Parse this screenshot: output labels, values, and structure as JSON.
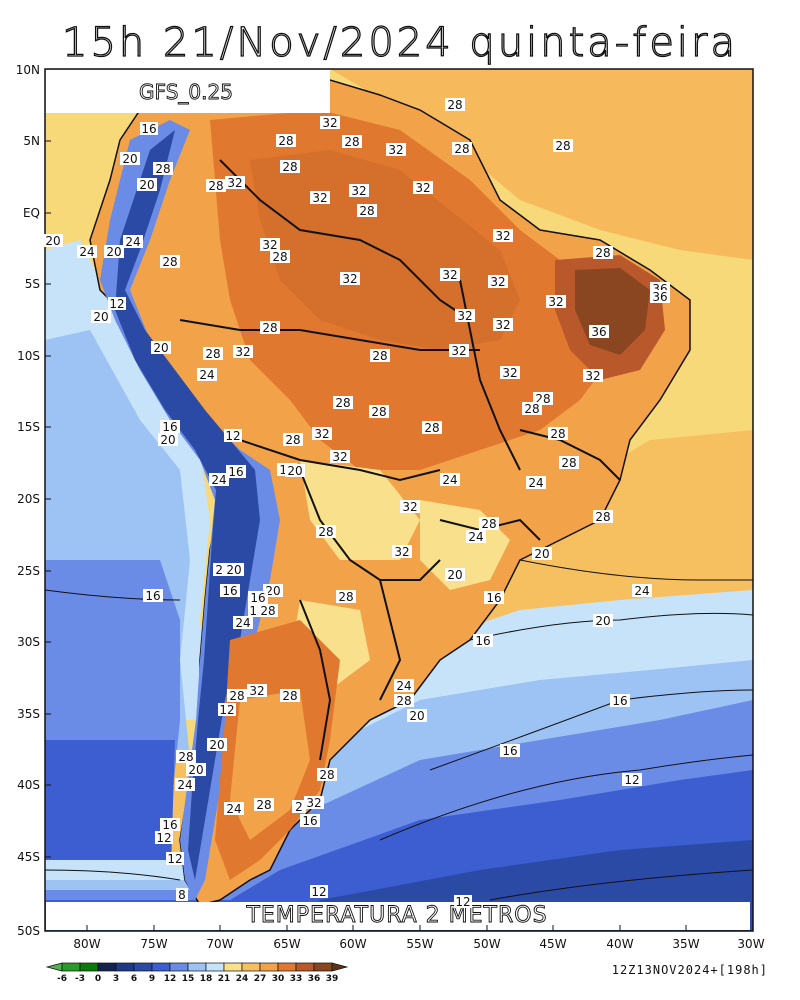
{
  "header": {
    "title": "15h 21/Nov/2024 quinta-feira"
  },
  "model_label": "GFS_0.25",
  "field_label": "TEMPERATURA 2 METROS",
  "run_info": "12Z13NOV2024+[198h]",
  "axes": {
    "lat_labels": [
      "10N",
      "5N",
      "EQ",
      "5S",
      "10S",
      "15S",
      "20S",
      "25S",
      "30S",
      "35S",
      "40S",
      "45S",
      "50S"
    ],
    "lon_labels": [
      "80W",
      "75W",
      "70W",
      "65W",
      "60W",
      "55W",
      "50W",
      "45W",
      "40W",
      "35W",
      "30W"
    ]
  },
  "colorbar": {
    "ticks": [
      "-6",
      "-3",
      "0",
      "3",
      "6",
      "9",
      "12",
      "15",
      "18",
      "21",
      "24",
      "27",
      "30",
      "33",
      "36",
      "39"
    ],
    "colors": [
      "#55b050",
      "#2a9a2a",
      "#0a7a0a",
      "#14234e",
      "#1e3a86",
      "#2b4aa6",
      "#3c5ed1",
      "#6a8be6",
      "#9dc2f4",
      "#c6e3fa",
      "#f8e08c",
      "#f6c061",
      "#f2a34a",
      "#e0782f",
      "#b9582a",
      "#8a4620",
      "#5e3216"
    ]
  },
  "contour_labels": [
    "8",
    "12",
    "16",
    "20",
    "24",
    "28",
    "32",
    "36"
  ]
}
